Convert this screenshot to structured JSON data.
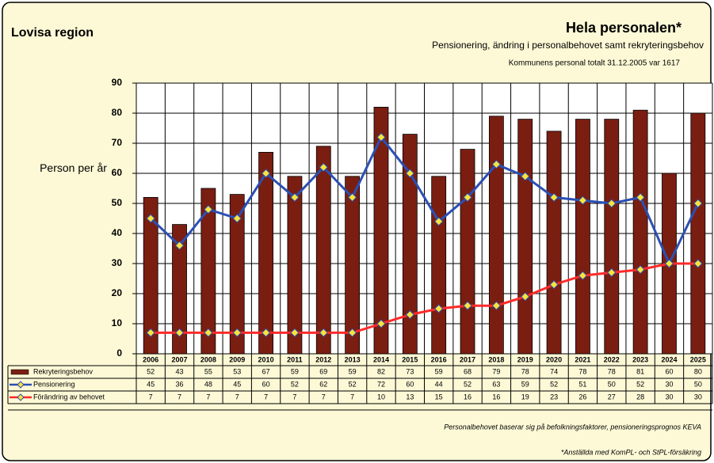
{
  "chart_data": {
    "type": "bar",
    "title": "Hela personalen*",
    "region": "Lovisa region",
    "subtitle": "Pensionering, ändring i personalbehovet samt rekryteringsbehov",
    "note": "Kommunens personal totalt 31.12.2005 var 1617",
    "ylabel": "Person per år",
    "footnotes": [
      "Personalbehovet baserar sig på befolkningsfaktorer, pensioneringsprognos KEVA",
      "*Anställda med KomPL- och StPL-försäkring"
    ],
    "categories": [
      "2006",
      "2007",
      "2008",
      "2009",
      "2010",
      "2011",
      "2012",
      "2013",
      "2014",
      "2015",
      "2016",
      "2017",
      "2018",
      "2019",
      "2020",
      "2021",
      "2022",
      "2023",
      "2024",
      "2025"
    ],
    "series": [
      {
        "name": "Rekryteringsbehov",
        "type": "bar",
        "color": "#7a1e12",
        "values": [
          52,
          43,
          55,
          53,
          67,
          59,
          69,
          59,
          82,
          73,
          59,
          68,
          79,
          78,
          74,
          78,
          78,
          81,
          60,
          80
        ]
      },
      {
        "name": "Pensionering",
        "type": "line",
        "color": "#2b4fb5",
        "values": [
          45,
          36,
          48,
          45,
          60,
          52,
          62,
          52,
          72,
          60,
          44,
          52,
          63,
          59,
          52,
          51,
          50,
          52,
          30,
          50
        ]
      },
      {
        "name": "Förändring av behovet",
        "type": "line",
        "color": "#ff2a2a",
        "values": [
          7,
          7,
          7,
          7,
          7,
          7,
          7,
          7,
          10,
          13,
          15,
          16,
          16,
          19,
          23,
          26,
          27,
          28,
          30,
          30
        ]
      }
    ],
    "ylim": [
      0,
      90
    ],
    "yticks": [
      0,
      10,
      20,
      30,
      40,
      50,
      60,
      70,
      80,
      90
    ],
    "grid": true
  }
}
